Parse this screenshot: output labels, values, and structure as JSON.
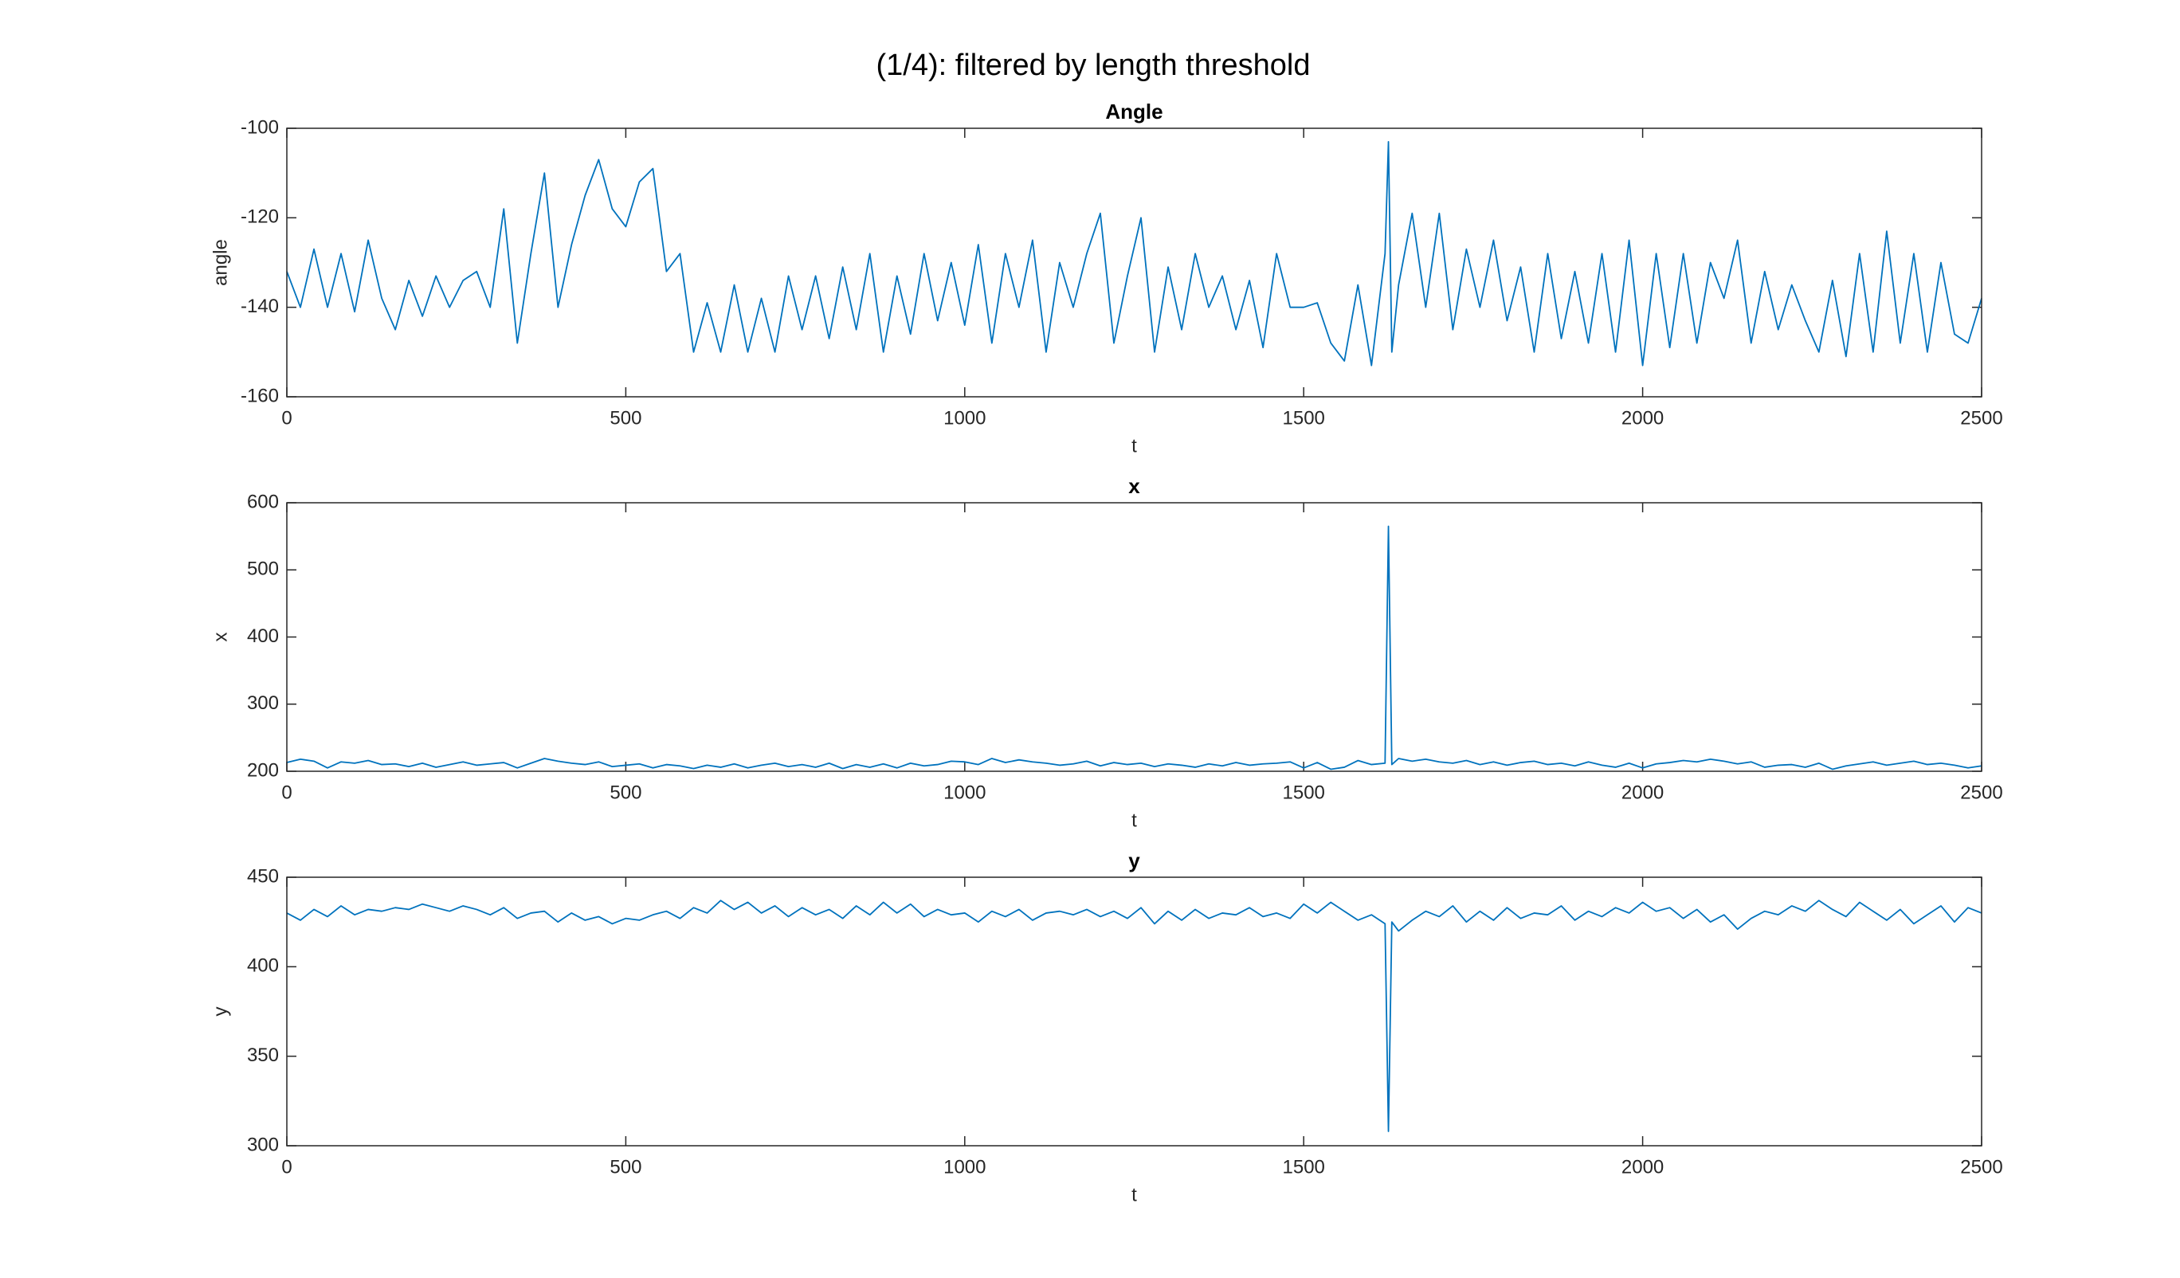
{
  "title": "(1/4): filtered by length threshold",
  "chart_data": [
    {
      "type": "line",
      "title": "Angle",
      "xlabel": "t",
      "ylabel": "angle",
      "grid": false,
      "xlim": [
        0,
        2500
      ],
      "xticks": [
        0,
        500,
        1000,
        1500,
        2000,
        2500
      ],
      "ylim": [
        -160,
        -100
      ],
      "yticks": [
        -160,
        -140,
        -120,
        -100
      ],
      "x": [
        0,
        20,
        40,
        60,
        80,
        100,
        120,
        140,
        160,
        180,
        200,
        220,
        240,
        260,
        280,
        300,
        320,
        340,
        360,
        380,
        400,
        420,
        440,
        460,
        480,
        500,
        520,
        540,
        560,
        580,
        600,
        620,
        640,
        660,
        680,
        700,
        720,
        740,
        760,
        780,
        800,
        820,
        840,
        860,
        880,
        900,
        920,
        940,
        960,
        980,
        1000,
        1020,
        1040,
        1060,
        1080,
        1100,
        1120,
        1140,
        1160,
        1180,
        1200,
        1220,
        1240,
        1260,
        1280,
        1300,
        1320,
        1340,
        1360,
        1380,
        1400,
        1420,
        1440,
        1460,
        1480,
        1500,
        1520,
        1540,
        1560,
        1580,
        1600,
        1620,
        1625,
        1630,
        1640,
        1660,
        1680,
        1700,
        1720,
        1740,
        1760,
        1780,
        1800,
        1820,
        1840,
        1860,
        1880,
        1900,
        1920,
        1940,
        1960,
        1980,
        2000,
        2020,
        2040,
        2060,
        2080,
        2100,
        2120,
        2140,
        2160,
        2180,
        2200,
        2220,
        2240,
        2260,
        2280,
        2300,
        2320,
        2340,
        2360,
        2380,
        2400,
        2420,
        2440,
        2460,
        2480,
        2500
      ],
      "series": [
        {
          "color": "#0072bd",
          "values": [
            -132,
            -140,
            -127,
            -140,
            -128,
            -141,
            -125,
            -138,
            -145,
            -134,
            -142,
            -133,
            -140,
            -134,
            -132,
            -140,
            -118,
            -148,
            -128,
            -110,
            -140,
            -126,
            -115,
            -107,
            -118,
            -122,
            -112,
            -109,
            -132,
            -128,
            -150,
            -139,
            -150,
            -135,
            -150,
            -138,
            -150,
            -133,
            -145,
            -133,
            -147,
            -131,
            -145,
            -128,
            -150,
            -133,
            -146,
            -128,
            -143,
            -130,
            -144,
            -126,
            -148,
            -128,
            -140,
            -125,
            -150,
            -130,
            -140,
            -128,
            -119,
            -148,
            -133,
            -120,
            -150,
            -131,
            -145,
            -128,
            -140,
            -133,
            -145,
            -134,
            -149,
            -128,
            -140,
            -140,
            -139,
            -148,
            -152,
            -135,
            -153,
            -128,
            -103,
            -150,
            -135,
            -119,
            -140,
            -119,
            -145,
            -127,
            -140,
            -125,
            -143,
            -131,
            -150,
            -128,
            -147,
            -132,
            -148,
            -128,
            -150,
            -125,
            -153,
            -128,
            -149,
            -128,
            -148,
            -130,
            -138,
            -125,
            -148,
            -132,
            -145,
            -135,
            -143,
            -150,
            -134,
            -151,
            -128,
            -150,
            -123,
            -148,
            -128,
            -150,
            -130,
            -146,
            -148,
            -138
          ]
        }
      ]
    },
    {
      "type": "line",
      "title": "x",
      "xlabel": "t",
      "ylabel": "x",
      "grid": false,
      "xlim": [
        0,
        2500
      ],
      "xticks": [
        0,
        500,
        1000,
        1500,
        2000,
        2500
      ],
      "ylim": [
        200,
        600
      ],
      "yticks": [
        200,
        300,
        400,
        500,
        600
      ],
      "x": [
        0,
        20,
        40,
        60,
        80,
        100,
        120,
        140,
        160,
        180,
        200,
        220,
        240,
        260,
        280,
        300,
        320,
        340,
        360,
        380,
        400,
        420,
        440,
        460,
        480,
        500,
        520,
        540,
        560,
        580,
        600,
        620,
        640,
        660,
        680,
        700,
        720,
        740,
        760,
        780,
        800,
        820,
        840,
        860,
        880,
        900,
        920,
        940,
        960,
        980,
        1000,
        1020,
        1040,
        1060,
        1080,
        1100,
        1120,
        1140,
        1160,
        1180,
        1200,
        1220,
        1240,
        1260,
        1280,
        1300,
        1320,
        1340,
        1360,
        1380,
        1400,
        1420,
        1440,
        1460,
        1480,
        1500,
        1520,
        1540,
        1560,
        1580,
        1600,
        1620,
        1625,
        1630,
        1640,
        1660,
        1680,
        1700,
        1720,
        1740,
        1760,
        1780,
        1800,
        1820,
        1840,
        1860,
        1880,
        1900,
        1920,
        1940,
        1960,
        1980,
        2000,
        2020,
        2040,
        2060,
        2080,
        2100,
        2120,
        2140,
        2160,
        2180,
        2200,
        2220,
        2240,
        2260,
        2280,
        2300,
        2320,
        2340,
        2360,
        2380,
        2400,
        2420,
        2440,
        2460,
        2480,
        2500
      ],
      "series": [
        {
          "color": "#0072bd",
          "values": [
            213,
            218,
            215,
            205,
            214,
            212,
            216,
            210,
            211,
            207,
            212,
            206,
            210,
            214,
            209,
            211,
            213,
            205,
            212,
            219,
            215,
            212,
            210,
            214,
            207,
            209,
            211,
            205,
            210,
            208,
            204,
            209,
            206,
            211,
            205,
            209,
            212,
            207,
            210,
            206,
            212,
            204,
            210,
            206,
            211,
            205,
            212,
            208,
            210,
            215,
            214,
            210,
            219,
            213,
            217,
            214,
            212,
            209,
            211,
            215,
            208,
            213,
            210,
            212,
            207,
            211,
            209,
            206,
            211,
            208,
            213,
            209,
            211,
            212,
            214,
            205,
            213,
            203,
            206,
            216,
            210,
            212,
            565,
            210,
            219,
            215,
            218,
            214,
            212,
            216,
            210,
            214,
            209,
            213,
            215,
            210,
            212,
            208,
            214,
            209,
            206,
            212,
            205,
            211,
            213,
            216,
            214,
            218,
            215,
            211,
            214,
            206,
            209,
            210,
            206,
            212,
            203,
            208,
            211,
            214,
            209,
            212,
            215,
            210,
            212,
            209,
            205,
            208
          ]
        }
      ]
    },
    {
      "type": "line",
      "title": "y",
      "xlabel": "t",
      "ylabel": "y",
      "grid": false,
      "xlim": [
        0,
        2500
      ],
      "xticks": [
        0,
        500,
        1000,
        1500,
        2000,
        2500
      ],
      "ylim": [
        300,
        450
      ],
      "yticks": [
        300,
        350,
        400,
        450
      ],
      "x": [
        0,
        20,
        40,
        60,
        80,
        100,
        120,
        140,
        160,
        180,
        200,
        220,
        240,
        260,
        280,
        300,
        320,
        340,
        360,
        380,
        400,
        420,
        440,
        460,
        480,
        500,
        520,
        540,
        560,
        580,
        600,
        620,
        640,
        660,
        680,
        700,
        720,
        740,
        760,
        780,
        800,
        820,
        840,
        860,
        880,
        900,
        920,
        940,
        960,
        980,
        1000,
        1020,
        1040,
        1060,
        1080,
        1100,
        1120,
        1140,
        1160,
        1180,
        1200,
        1220,
        1240,
        1260,
        1280,
        1300,
        1320,
        1340,
        1360,
        1380,
        1400,
        1420,
        1440,
        1460,
        1480,
        1500,
        1520,
        1540,
        1560,
        1580,
        1600,
        1620,
        1625,
        1630,
        1640,
        1660,
        1680,
        1700,
        1720,
        1740,
        1760,
        1780,
        1800,
        1820,
        1840,
        1860,
        1880,
        1900,
        1920,
        1940,
        1960,
        1980,
        2000,
        2020,
        2040,
        2060,
        2080,
        2100,
        2120,
        2140,
        2160,
        2180,
        2200,
        2220,
        2240,
        2260,
        2280,
        2300,
        2320,
        2340,
        2360,
        2380,
        2400,
        2420,
        2440,
        2460,
        2480,
        2500
      ],
      "series": [
        {
          "color": "#0072bd",
          "values": [
            430,
            426,
            432,
            428,
            434,
            429,
            432,
            431,
            433,
            432,
            435,
            433,
            431,
            434,
            432,
            429,
            433,
            427,
            430,
            431,
            425,
            430,
            426,
            428,
            424,
            427,
            426,
            429,
            431,
            427,
            433,
            430,
            437,
            432,
            436,
            430,
            434,
            428,
            433,
            429,
            432,
            427,
            434,
            429,
            436,
            430,
            435,
            428,
            432,
            429,
            430,
            425,
            431,
            428,
            432,
            426,
            430,
            431,
            429,
            432,
            428,
            431,
            427,
            433,
            424,
            431,
            426,
            432,
            427,
            430,
            429,
            433,
            428,
            430,
            427,
            435,
            430,
            436,
            431,
            426,
            429,
            424,
            308,
            425,
            420,
            426,
            431,
            428,
            434,
            425,
            431,
            426,
            433,
            427,
            430,
            429,
            434,
            426,
            431,
            428,
            433,
            430,
            436,
            431,
            433,
            427,
            432,
            425,
            429,
            421,
            427,
            431,
            429,
            434,
            431,
            437,
            432,
            428,
            436,
            431,
            426,
            432,
            424,
            429,
            434,
            425,
            433,
            430
          ]
        }
      ]
    }
  ]
}
